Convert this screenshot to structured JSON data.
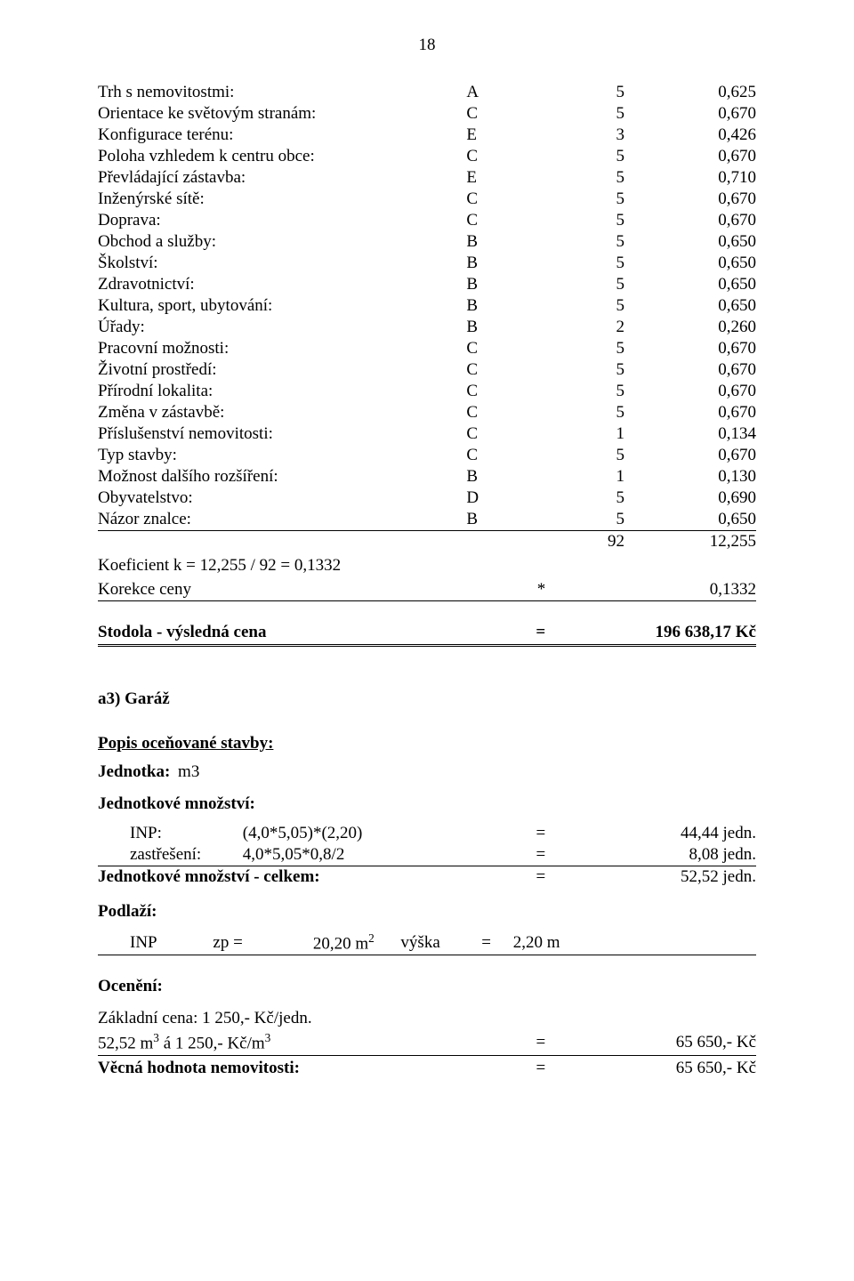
{
  "page_number": "18",
  "factors": [
    {
      "label": "Trh s nemovitostmi:",
      "letter": "A",
      "num": "5",
      "val": "0,625"
    },
    {
      "label": "Orientace ke světovým stranám:",
      "letter": "C",
      "num": "5",
      "val": "0,670"
    },
    {
      "label": "Konfigurace terénu:",
      "letter": "E",
      "num": "3",
      "val": "0,426"
    },
    {
      "label": "Poloha vzhledem k centru obce:",
      "letter": "C",
      "num": "5",
      "val": "0,670"
    },
    {
      "label": "Převládající zástavba:",
      "letter": "E",
      "num": "5",
      "val": "0,710"
    },
    {
      "label": "Inženýrské sítě:",
      "letter": "C",
      "num": "5",
      "val": "0,670"
    },
    {
      "label": "Doprava:",
      "letter": "C",
      "num": "5",
      "val": "0,670"
    },
    {
      "label": "Obchod a služby:",
      "letter": "B",
      "num": "5",
      "val": "0,650"
    },
    {
      "label": "Školství:",
      "letter": "B",
      "num": "5",
      "val": "0,650"
    },
    {
      "label": "Zdravotnictví:",
      "letter": "B",
      "num": "5",
      "val": "0,650"
    },
    {
      "label": "Kultura, sport, ubytování:",
      "letter": "B",
      "num": "5",
      "val": "0,650"
    },
    {
      "label": "Úřady:",
      "letter": "B",
      "num": "2",
      "val": "0,260"
    },
    {
      "label": "Pracovní možnosti:",
      "letter": "C",
      "num": "5",
      "val": "0,670"
    },
    {
      "label": "Životní prostředí:",
      "letter": "C",
      "num": "5",
      "val": "0,670"
    },
    {
      "label": "Přírodní lokalita:",
      "letter": "C",
      "num": "5",
      "val": "0,670"
    },
    {
      "label": "Změna v zástavbě:",
      "letter": "C",
      "num": "5",
      "val": "0,670"
    },
    {
      "label": "Příslušenství nemovitosti:",
      "letter": "C",
      "num": "1",
      "val": "0,134"
    },
    {
      "label": "Typ stavby:",
      "letter": "C",
      "num": "5",
      "val": "0,670"
    },
    {
      "label": "Možnost dalšího rozšíření:",
      "letter": "B",
      "num": "1",
      "val": "0,130"
    },
    {
      "label": "Obyvatelstvo:",
      "letter": "D",
      "num": "5",
      "val": "0,690"
    },
    {
      "label": "Názor znalce:",
      "letter": "B",
      "num": "5",
      "val": "0,650"
    }
  ],
  "sum_num": "92",
  "sum_val": "12,255",
  "coef_line": "Koeficient k = 12,255 / 92 = 0,1332",
  "correction_label": "Korekce ceny",
  "correction_sym": "*",
  "correction_val": "0,1332",
  "result_label": "Stodola - výsledná cena",
  "result_sym": "=",
  "result_val": "196 638,17 Kč",
  "section2": {
    "title": "a3) Garáž",
    "desc_heading": "Popis oceňované stavby:",
    "unit_label": "Jednotka:",
    "unit_value": "m3",
    "qty_heading": "Jednotkové množství:",
    "rows": [
      {
        "name": "INP:",
        "expr": "(4,0*5,05)*(2,20)",
        "eq": "=",
        "val": "44,44 jedn."
      },
      {
        "name": "zastřešení:",
        "expr": "4,0*5,05*0,8/2",
        "eq": "=",
        "val": "8,08 jedn."
      }
    ],
    "qty_total_label": "Jednotkové množství - celkem:",
    "qty_total_eq": "=",
    "qty_total_val": "52,52 jedn.",
    "floor_heading": "Podlaží:",
    "floor": {
      "name": "INP",
      "zp_label": "zp =",
      "zp_val": "20,20 m",
      "zp_exp": "2",
      "h_label": "výška",
      "h_eq": "=",
      "h_val": "2,20 m"
    },
    "valuation_heading": "Ocenění:",
    "base_price": "Základní cena: 1 250,- Kč/jedn.",
    "calc_left_1": "52,52 m",
    "calc_exp1": "3",
    "calc_left_2": " á 1 250,- Kč/m",
    "calc_exp2": "3",
    "calc_eq": "=",
    "calc_val": "65 650,- Kč",
    "net_label": "Věcná hodnota nemovitosti:",
    "net_eq": "=",
    "net_val": "65 650,- Kč"
  }
}
